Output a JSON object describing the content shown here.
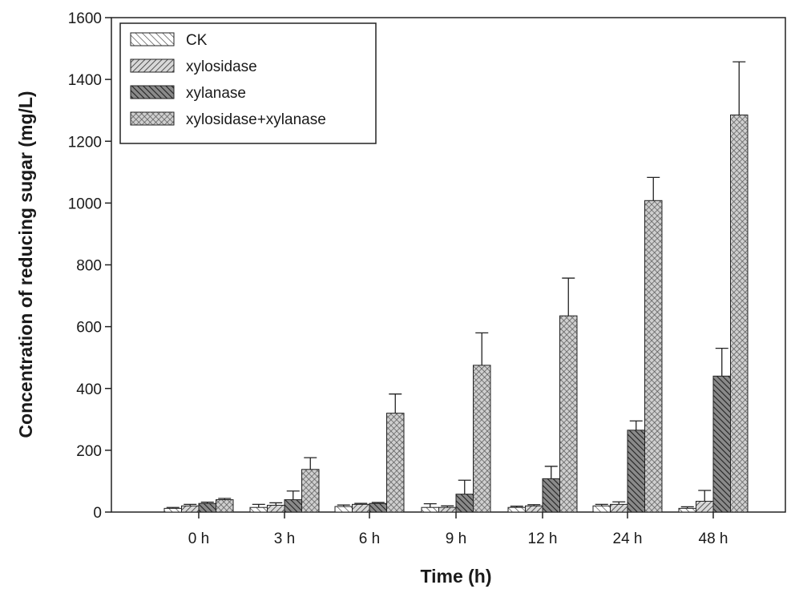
{
  "chart_data": {
    "type": "bar",
    "xlabel": "Time (h)",
    "ylabel": "Concentration of reducing sugar (mg/L)",
    "ylim": [
      0,
      1600
    ],
    "yticks": [
      0,
      200,
      400,
      600,
      800,
      1000,
      1200,
      1400,
      1600
    ],
    "categories": [
      "0 h",
      "3 h",
      "6 h",
      "9 h",
      "12 h",
      "24 h",
      "48 h"
    ],
    "legend_position": "top-left",
    "grid": false,
    "series": [
      {
        "name": "CK",
        "pattern": "diag-thin",
        "values": [
          12,
          15,
          18,
          15,
          15,
          20,
          12
        ],
        "errors": [
          3,
          10,
          5,
          12,
          4,
          5,
          5
        ]
      },
      {
        "name": "xylosidase",
        "pattern": "diag-medium",
        "values": [
          20,
          22,
          25,
          15,
          20,
          25,
          35
        ],
        "errors": [
          5,
          8,
          3,
          5,
          4,
          8,
          35
        ]
      },
      {
        "name": "xylanase",
        "pattern": "diag-dense",
        "values": [
          28,
          40,
          28,
          58,
          108,
          265,
          440
        ],
        "errors": [
          4,
          28,
          3,
          45,
          40,
          30,
          90
        ]
      },
      {
        "name": "xylosidase+xylanase",
        "pattern": "cross",
        "values": [
          40,
          138,
          320,
          475,
          635,
          1008,
          1285
        ],
        "errors": [
          4,
          38,
          62,
          105,
          122,
          75,
          172
        ]
      }
    ]
  }
}
